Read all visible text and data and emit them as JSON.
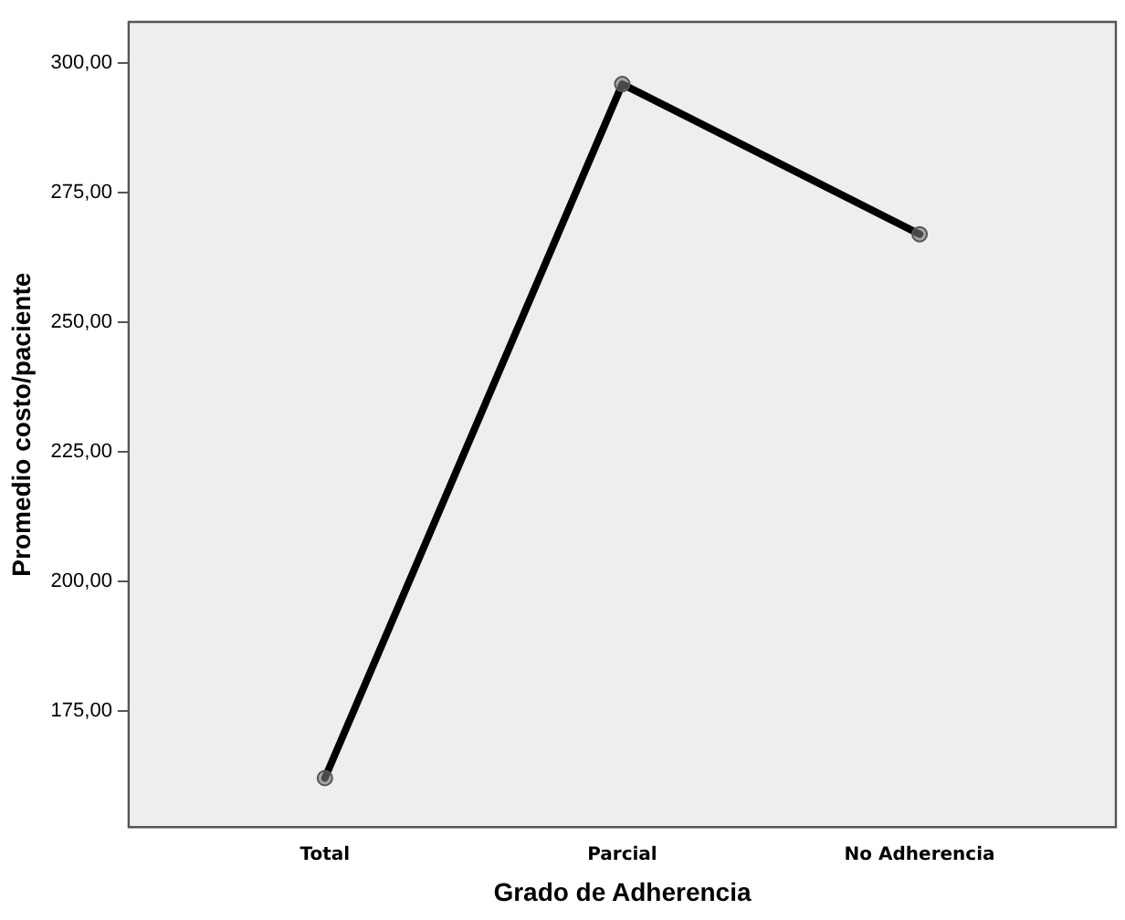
{
  "chart_data": {
    "type": "line",
    "xlabel": "Grado de Adherencia",
    "ylabel": "Promedio costo/paciente",
    "categories": [
      "Total",
      "Parcial",
      "No Adherencia"
    ],
    "series": [
      {
        "color": "#000000",
        "values": [
          162,
          296,
          267
        ]
      }
    ],
    "ylim": [
      152.5,
      308
    ],
    "yticks": [
      {
        "value": 175,
        "label": "175,00"
      },
      {
        "value": 200,
        "label": "200,00"
      },
      {
        "value": 225,
        "label": "225,00"
      },
      {
        "value": 250,
        "label": "250,00"
      },
      {
        "value": 275,
        "label": "275,00"
      },
      {
        "value": 300,
        "label": "300,00"
      }
    ],
    "grid": false,
    "legend": false,
    "marker": "circle",
    "line_style": "solid"
  }
}
